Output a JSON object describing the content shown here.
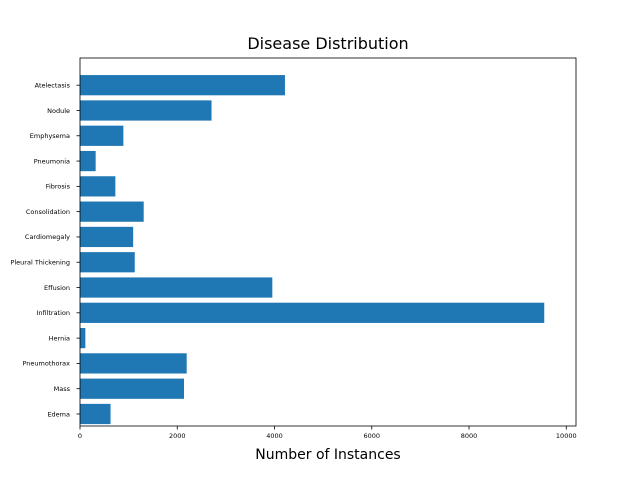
{
  "chart_data": {
    "type": "bar",
    "orientation": "horizontal",
    "title": "Disease Distribution",
    "xlabel": "Number of Instances",
    "ylabel": "",
    "xlim": [
      0,
      10200
    ],
    "xticks": [
      0,
      2000,
      4000,
      6000,
      8000,
      10000
    ],
    "xtick_labels": [
      "0",
      "2000",
      "4000",
      "6000",
      "8000",
      "10000"
    ],
    "categories": [
      "Atelectasis",
      "Nodule",
      "Emphysema",
      "Pneumonia",
      "Fibrosis",
      "Consolidation",
      "Cardiomegaly",
      "Pleural Thickening",
      "Effusion",
      "Infiltration",
      "Hernia",
      "Pneumothorax",
      "Mass",
      "Edema"
    ],
    "values": [
      4215,
      2705,
      892,
      322,
      727,
      1310,
      1093,
      1126,
      3955,
      9547,
      110,
      2194,
      2139,
      628
    ],
    "bar_color": "#1f77b4",
    "grid": false,
    "legend": "none"
  }
}
